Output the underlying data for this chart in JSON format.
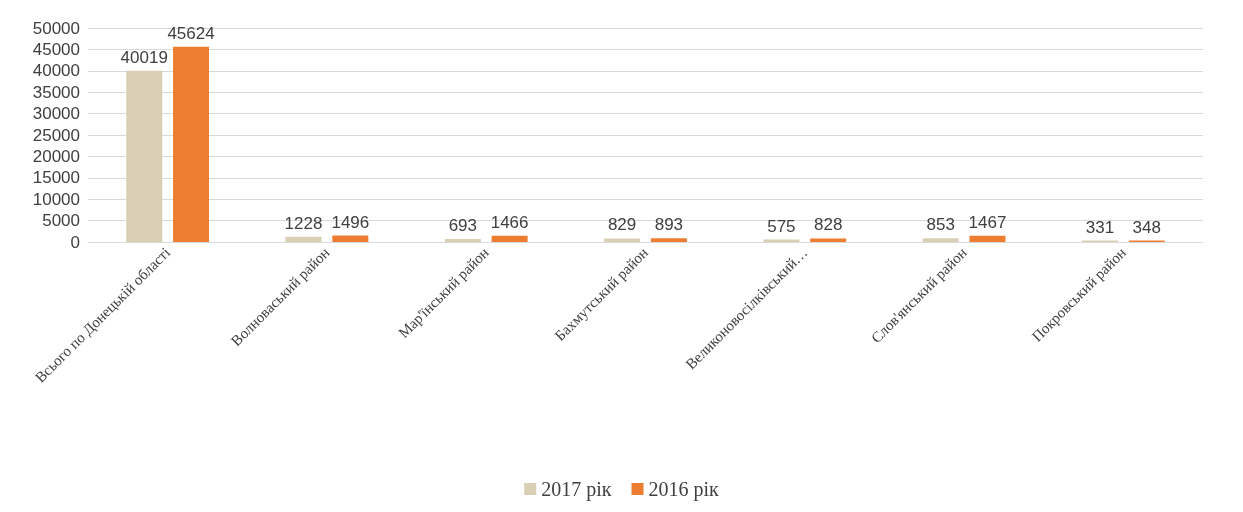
{
  "chart_data": {
    "type": "bar",
    "categories": [
      "Всього по Донецькій області",
      "Волноваський район",
      "Мар'їнський район",
      "Бахмутський район",
      "Великоновосілківський…",
      "Слов'янський район",
      "Покровський район"
    ],
    "series": [
      {
        "name": "2017 рік",
        "color": "#d8cfb5",
        "values": [
          40019,
          1228,
          693,
          829,
          575,
          853,
          331
        ]
      },
      {
        "name": "2016 рік",
        "color": "#ed7d31",
        "values": [
          45624,
          1496,
          1466,
          893,
          828,
          1467,
          348
        ]
      }
    ],
    "ylim": [
      0,
      50000
    ],
    "yticks": [
      0,
      5000,
      10000,
      15000,
      20000,
      25000,
      30000,
      35000,
      40000,
      45000,
      50000
    ],
    "grid": "y",
    "legend": "bottom",
    "data_labels": true
  }
}
